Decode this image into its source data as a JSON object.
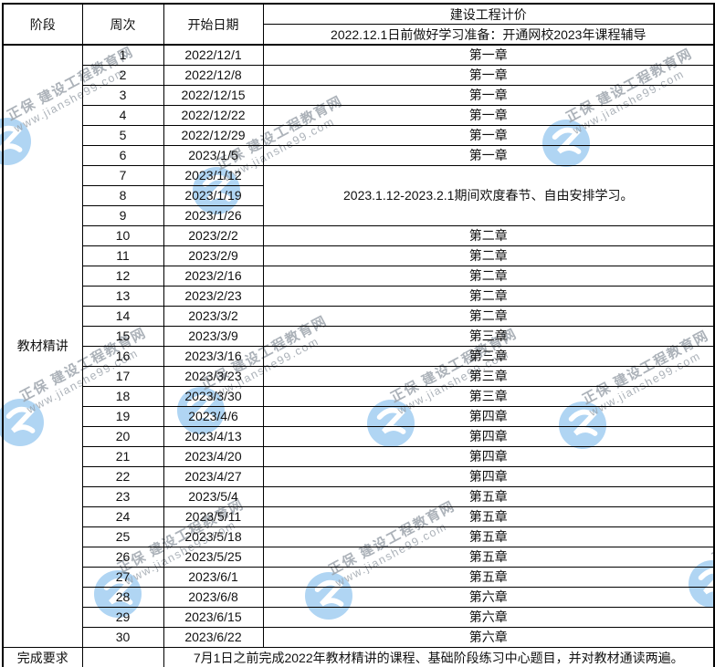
{
  "header": {
    "col_stage": "阶段",
    "col_week": "周次",
    "col_date": "开始日期",
    "course_title": "建设工程计价",
    "course_subtitle": "2022.12.1日前做好学习准备：开通网校2023年课程辅导"
  },
  "stage_label": "教材精讲",
  "rows": [
    {
      "week": "1",
      "date": "2022/12/1",
      "content": "第一章"
    },
    {
      "week": "2",
      "date": "2022/12/8",
      "content": "第一章"
    },
    {
      "week": "3",
      "date": "2022/12/15",
      "content": "第一章"
    },
    {
      "week": "4",
      "date": "2022/12/22",
      "content": "第一章"
    },
    {
      "week": "5",
      "date": "2022/12/29",
      "content": "第一章"
    },
    {
      "week": "6",
      "date": "2023/1/5",
      "content": "第一章"
    },
    {
      "week": "7",
      "date": "2023/1/12",
      "content": "2023.1.12-2023.2.1期间欢度春节、自由安排学习。",
      "rowspan": 3
    },
    {
      "week": "8",
      "date": "2023/1/19"
    },
    {
      "week": "9",
      "date": "2023/1/26"
    },
    {
      "week": "10",
      "date": "2023/2/2",
      "content": "第二章"
    },
    {
      "week": "11",
      "date": "2023/2/9",
      "content": "第二章"
    },
    {
      "week": "12",
      "date": "2023/2/16",
      "content": "第二章"
    },
    {
      "week": "13",
      "date": "2023/2/23",
      "content": "第二章"
    },
    {
      "week": "14",
      "date": "2023/3/2",
      "content": "第二章"
    },
    {
      "week": "15",
      "date": "2023/3/9",
      "content": "第三章"
    },
    {
      "week": "16",
      "date": "2023/3/16",
      "content": "第三章"
    },
    {
      "week": "17",
      "date": "2023/3/23",
      "content": "第三章"
    },
    {
      "week": "18",
      "date": "2023/3/30",
      "content": "第三章"
    },
    {
      "week": "19",
      "date": "2023/4/6",
      "content": "第四章"
    },
    {
      "week": "20",
      "date": "2023/4/13",
      "content": "第四章"
    },
    {
      "week": "21",
      "date": "2023/4/20",
      "content": "第四章"
    },
    {
      "week": "22",
      "date": "2023/4/27",
      "content": "第四章"
    },
    {
      "week": "23",
      "date": "2023/5/4",
      "content": "第五章"
    },
    {
      "week": "24",
      "date": "2023/5/11",
      "content": "第五章"
    },
    {
      "week": "25",
      "date": "2023/5/18",
      "content": "第五章"
    },
    {
      "week": "26",
      "date": "2023/5/25",
      "content": "第五章"
    },
    {
      "week": "27",
      "date": "2023/6/1",
      "content": "第五章"
    },
    {
      "week": "28",
      "date": "2023/6/8",
      "content": "第六章"
    },
    {
      "week": "29",
      "date": "2023/6/15",
      "content": "第六章"
    },
    {
      "week": "30",
      "date": "2023/6/22",
      "content": "第六章"
    }
  ],
  "footer": {
    "label": "完成要求",
    "text": "7月1日之前完成2022年教材精讲的课程、基础阶段练习中心题目，并对教材通读两遍。"
  },
  "watermark": {
    "brand": "正保 建设工程教育网",
    "url": "www.jianshe99.com",
    "logo_color": "#a3cef2",
    "text_color": "#98a0a8"
  }
}
